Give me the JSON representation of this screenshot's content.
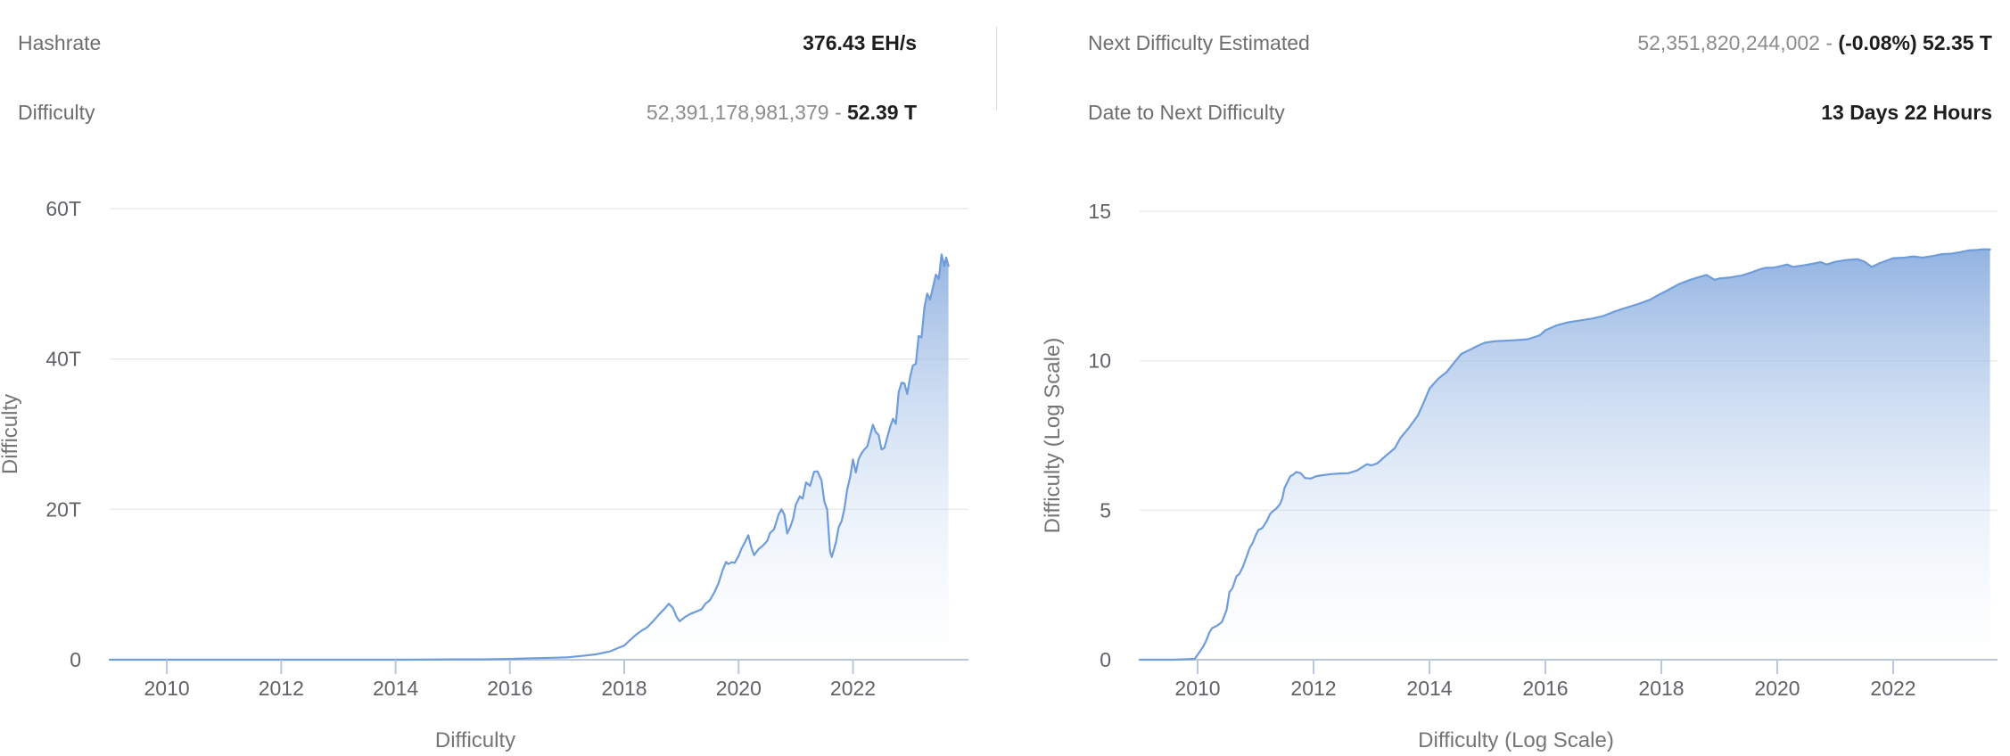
{
  "stats": {
    "left": {
      "rows": [
        {
          "label": "Hashrate",
          "value_muted": "",
          "value_strong": "376.43 EH/s"
        },
        {
          "label": "Difficulty",
          "value_muted": "52,391,178,981,379 - ",
          "value_strong": "52.39 T"
        }
      ]
    },
    "right": {
      "rows": [
        {
          "label": "Next Difficulty Estimated",
          "value_muted": "52,351,820,244,002 - ",
          "value_strong": "(-0.08%) 52.35 T"
        },
        {
          "label": "Date to Next Difficulty",
          "value_muted": "",
          "value_strong": "13 Days 22 Hours"
        }
      ]
    }
  },
  "colors": {
    "line": "#6f9cda",
    "fill_top": "rgba(105,150,214,0.85)",
    "fill_bottom": "rgba(235,244,252,0.06)",
    "gridline": "#e2e2e2",
    "axis_line": "#b9c6dc",
    "tick_label": "#5f6368",
    "axis_title": "#757575"
  },
  "chart_data": [
    {
      "type": "area",
      "title": "",
      "xlabel": "Difficulty",
      "ylabel": "Difficulty",
      "unit": "T (trillions, linear scale)",
      "legend": "none",
      "grid": "horizontal",
      "xlim": [
        2009,
        2024.02
      ],
      "ylim": [
        0,
        60
      ],
      "x_ticks": [
        2010,
        2012,
        2014,
        2016,
        2018,
        2020,
        2022
      ],
      "y_ticks": {
        "values": [
          0,
          20,
          40,
          60
        ],
        "labels": [
          "0",
          "20T",
          "40T",
          "60T"
        ]
      },
      "x": [
        2009.0,
        2010.0,
        2011.0,
        2012.0,
        2013.0,
        2013.5,
        2014.0,
        2014.5,
        2015.0,
        2015.5,
        2016.0,
        2016.25,
        2016.5,
        2016.75,
        2017.0,
        2017.25,
        2017.5,
        2017.75,
        2017.9,
        2018.0,
        2018.1,
        2018.2,
        2018.3,
        2018.4,
        2018.5,
        2018.6,
        2018.7,
        2018.78,
        2018.85,
        2018.92,
        2018.97,
        2019.05,
        2019.15,
        2019.25,
        2019.35,
        2019.42,
        2019.5,
        2019.58,
        2019.65,
        2019.72,
        2019.78,
        2019.82,
        2019.88,
        2019.93,
        2020.0,
        2020.05,
        2020.1,
        2020.17,
        2020.22,
        2020.27,
        2020.35,
        2020.42,
        2020.5,
        2020.55,
        2020.62,
        2020.7,
        2020.75,
        2020.8,
        2020.85,
        2020.9,
        2020.95,
        2021.0,
        2021.07,
        2021.12,
        2021.18,
        2021.25,
        2021.32,
        2021.38,
        2021.45,
        2021.5,
        2021.55,
        2021.6,
        2021.63,
        2021.7,
        2021.75,
        2021.8,
        2021.85,
        2021.9,
        2021.95,
        2022.0,
        2022.05,
        2022.1,
        2022.15,
        2022.2,
        2022.25,
        2022.3,
        2022.35,
        2022.4,
        2022.45,
        2022.5,
        2022.55,
        2022.6,
        2022.65,
        2022.7,
        2022.75,
        2022.8,
        2022.85,
        2022.9,
        2022.95,
        2023.0,
        2023.05,
        2023.1,
        2023.15,
        2023.2,
        2023.25,
        2023.3,
        2023.35,
        2023.4,
        2023.45,
        2023.5,
        2023.55,
        2023.6,
        2023.63,
        2023.67
      ],
      "values": [
        0,
        0,
        0,
        0,
        0,
        0,
        0.001,
        0.017,
        0.044,
        0.049,
        0.104,
        0.167,
        0.21,
        0.259,
        0.318,
        0.5,
        0.709,
        1.103,
        1.59,
        1.873,
        2.6,
        3.29,
        3.85,
        4.31,
        5.08,
        5.95,
        6.73,
        7.45,
        6.9,
        5.65,
        5.11,
        5.62,
        6.07,
        6.38,
        6.7,
        7.46,
        7.93,
        9.01,
        10.18,
        11.89,
        13.01,
        12.72,
        12.97,
        12.88,
        13.8,
        14.78,
        15.47,
        16.55,
        15.0,
        13.91,
        14.72,
        15.14,
        15.78,
        16.85,
        17.35,
        19.31,
        20.0,
        19.3,
        16.79,
        17.6,
        18.67,
        20.61,
        21.72,
        21.43,
        23.58,
        23.14,
        25.0,
        25.05,
        23.89,
        21.05,
        19.93,
        14.36,
        13.67,
        15.56,
        17.62,
        18.42,
        20.08,
        22.67,
        24.27,
        26.64,
        24.9,
        26.69,
        27.45,
        27.97,
        28.35,
        29.79,
        31.25,
        30.28,
        29.9,
        27.97,
        28.17,
        29.57,
        30.98,
        32.05,
        31.36,
        35.61,
        36.84,
        36.76,
        35.36,
        37.59,
        39.16,
        39.35,
        43.05,
        42.88,
        46.84,
        48.71,
        47.89,
        49.55,
        51.23,
        50.65,
        53.91,
        52.35,
        53.5,
        52.39
      ]
    },
    {
      "type": "area",
      "title": "",
      "xlabel": "Difficulty (Log Scale)",
      "ylabel": "Difficulty (Log Scale)",
      "unit": "log10 of raw difficulty",
      "legend": "none",
      "grid": "horizontal",
      "xlim": [
        2009,
        2023.8
      ],
      "ylim": [
        0,
        15
      ],
      "x_ticks": [
        2010,
        2012,
        2014,
        2016,
        2018,
        2020,
        2022
      ],
      "y_ticks": {
        "values": [
          0,
          5,
          10,
          15
        ],
        "labels": [
          "0",
          "5",
          "10",
          "15"
        ]
      },
      "x": [
        2009.0,
        2009.6,
        2009.95,
        2010.05,
        2010.1,
        2010.15,
        2010.2,
        2010.25,
        2010.33,
        2010.42,
        2010.5,
        2010.55,
        2010.6,
        2010.67,
        2010.72,
        2010.78,
        2010.85,
        2010.9,
        2010.95,
        2011.0,
        2011.05,
        2011.12,
        2011.2,
        2011.25,
        2011.3,
        2011.35,
        2011.42,
        2011.46,
        2011.5,
        2011.55,
        2011.6,
        2011.65,
        2011.7,
        2011.78,
        2011.85,
        2011.95,
        2012.05,
        2012.15,
        2012.3,
        2012.45,
        2012.6,
        2012.75,
        2012.92,
        2013.0,
        2013.1,
        2013.25,
        2013.4,
        2013.5,
        2013.65,
        2013.8,
        2013.9,
        2014.0,
        2014.15,
        2014.3,
        2014.45,
        2014.55,
        2014.7,
        2014.8,
        2014.95,
        2015.1,
        2015.3,
        2015.5,
        2015.7,
        2015.9,
        2016.0,
        2016.2,
        2016.4,
        2016.6,
        2016.8,
        2017.0,
        2017.2,
        2017.4,
        2017.6,
        2017.8,
        2017.95,
        2018.1,
        2018.3,
        2018.5,
        2018.65,
        2018.78,
        2018.92,
        2019.0,
        2019.2,
        2019.4,
        2019.55,
        2019.7,
        2019.8,
        2019.9,
        2020.0,
        2020.17,
        2020.27,
        2020.45,
        2020.6,
        2020.75,
        2020.85,
        2021.0,
        2021.18,
        2021.38,
        2021.5,
        2021.63,
        2021.75,
        2021.9,
        2022.0,
        2022.2,
        2022.35,
        2022.5,
        2022.7,
        2022.85,
        2023.0,
        2023.15,
        2023.3,
        2023.45,
        2023.55,
        2023.67
      ],
      "values": [
        0,
        0,
        0.03,
        0.3,
        0.45,
        0.65,
        0.9,
        1.06,
        1.13,
        1.26,
        1.66,
        2.26,
        2.39,
        2.79,
        2.87,
        3.1,
        3.47,
        3.75,
        3.91,
        4.15,
        4.34,
        4.41,
        4.66,
        4.88,
        4.97,
        5.04,
        5.2,
        5.39,
        5.75,
        5.94,
        6.14,
        6.19,
        6.28,
        6.24,
        6.08,
        6.06,
        6.14,
        6.17,
        6.21,
        6.23,
        6.24,
        6.33,
        6.54,
        6.5,
        6.57,
        6.83,
        7.07,
        7.42,
        7.77,
        8.17,
        8.6,
        9.07,
        9.4,
        9.63,
        10.0,
        10.23,
        10.37,
        10.47,
        10.6,
        10.65,
        10.67,
        10.69,
        10.72,
        10.85,
        11.02,
        11.19,
        11.29,
        11.35,
        11.41,
        11.5,
        11.65,
        11.78,
        11.9,
        12.04,
        12.2,
        12.35,
        12.56,
        12.71,
        12.8,
        12.87,
        12.71,
        12.75,
        12.79,
        12.86,
        12.95,
        13.06,
        13.11,
        13.11,
        13.14,
        13.22,
        13.14,
        13.19,
        13.24,
        13.3,
        13.22,
        13.31,
        13.37,
        13.4,
        13.32,
        13.14,
        13.25,
        13.36,
        13.43,
        13.45,
        13.49,
        13.45,
        13.51,
        13.57,
        13.58,
        13.63,
        13.69,
        13.71,
        13.73,
        13.72
      ]
    }
  ]
}
